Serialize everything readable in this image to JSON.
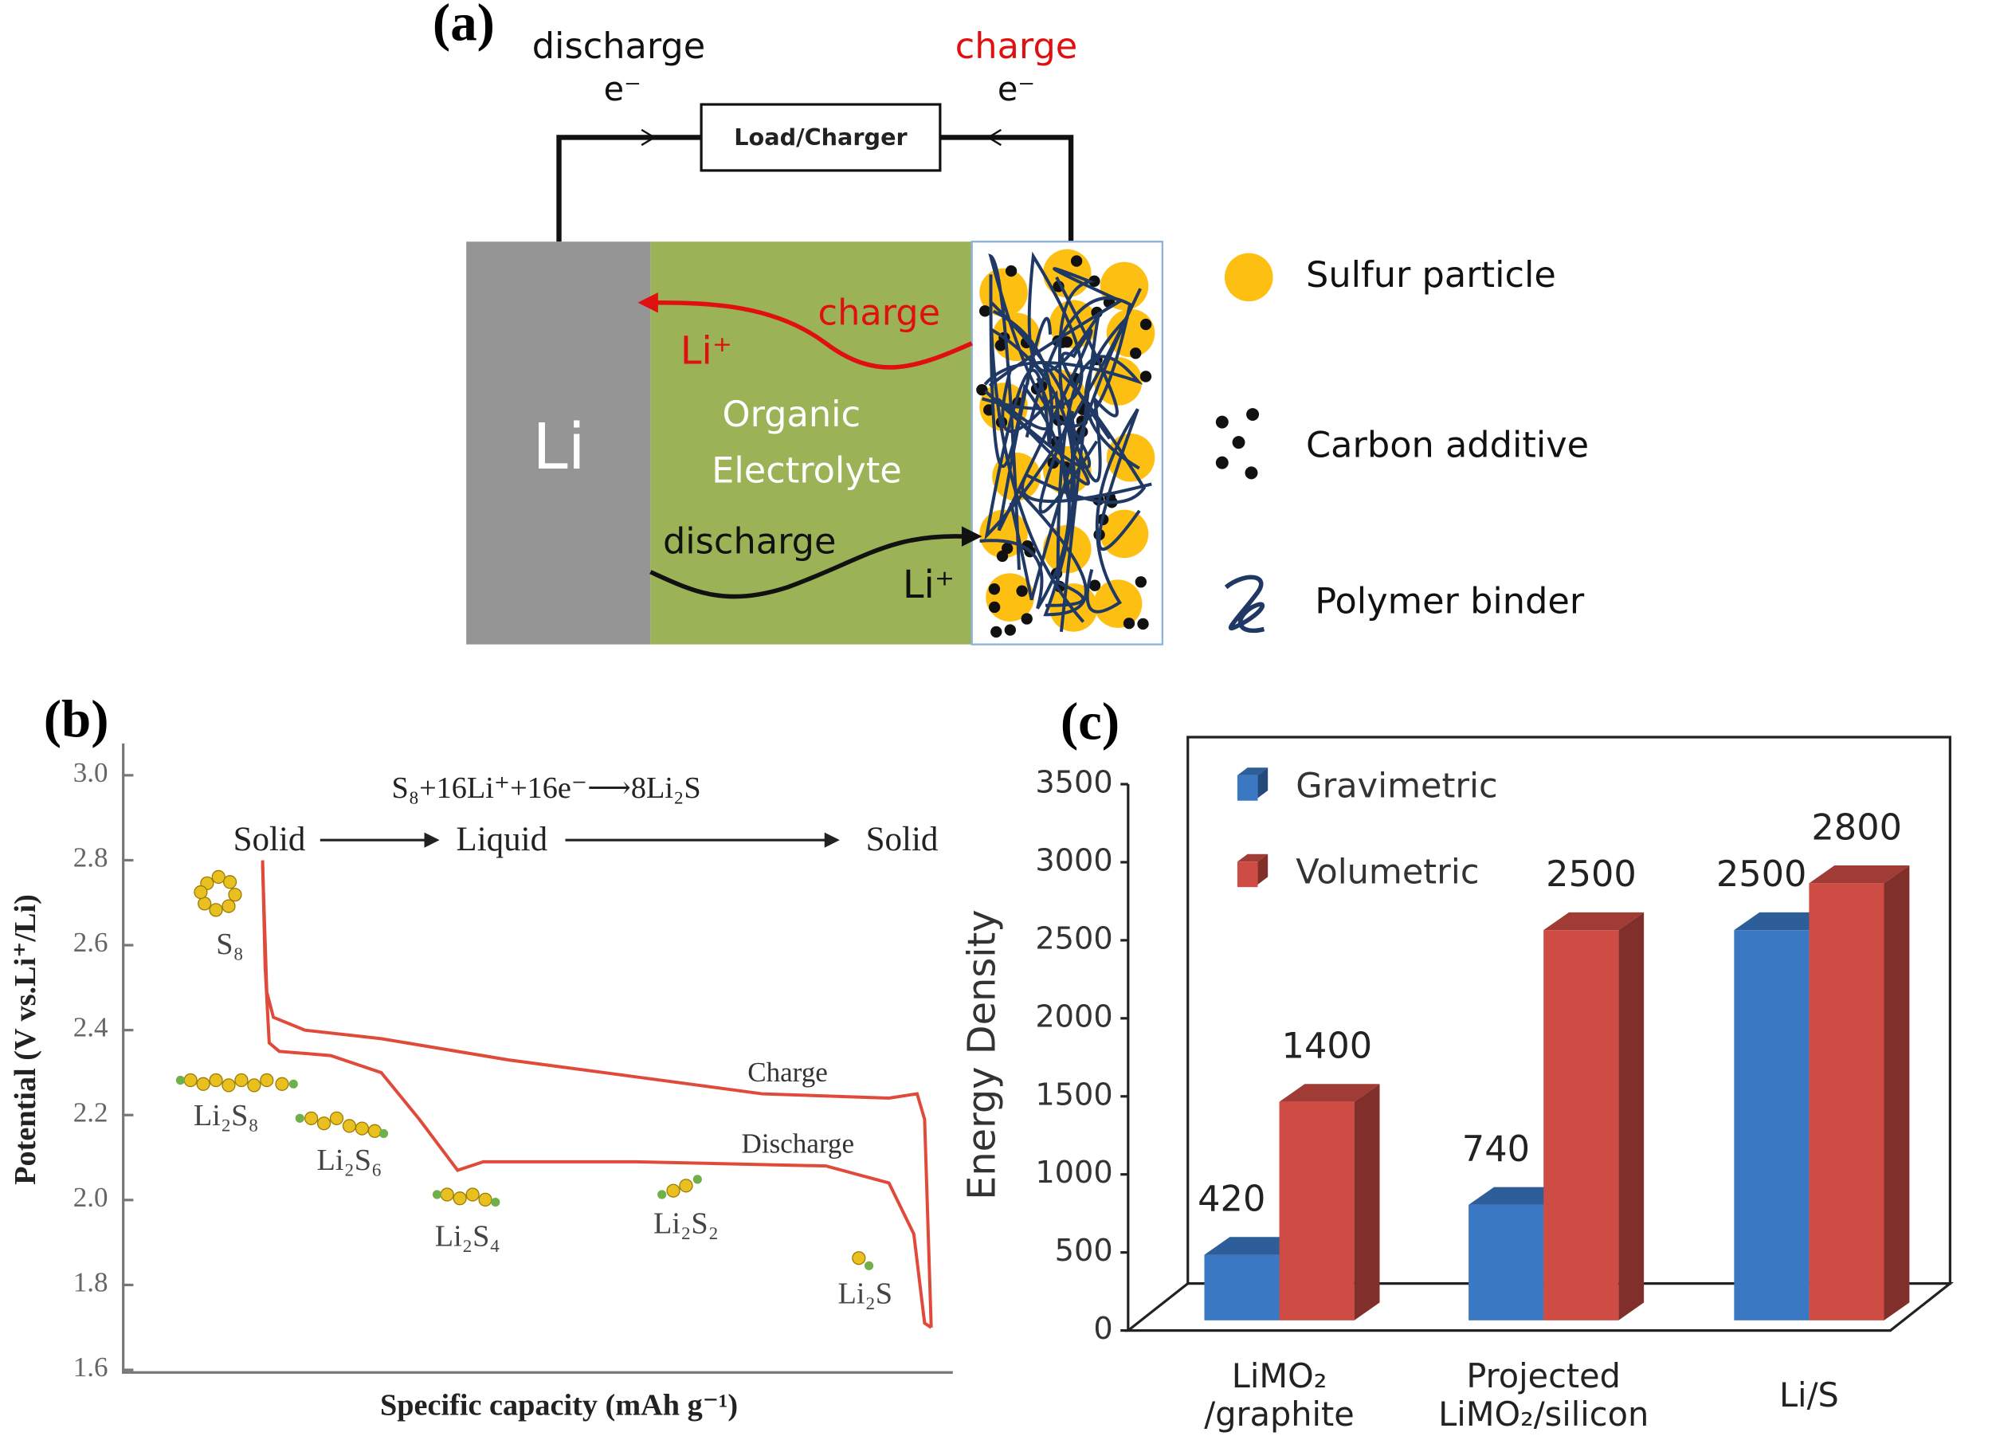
{
  "panel_a": {
    "label": "(a)",
    "wire": {
      "discharge": "discharge",
      "charge": "charge",
      "electron_left": "e⁻",
      "electron_right": "e⁻",
      "load": "Load/Charger"
    },
    "cell": {
      "anode": "Li",
      "electrolyte": [
        "Organic",
        "Electrolyte"
      ],
      "charge_path": "charge",
      "charge_ion": "Li⁺",
      "discharge_path": "discharge",
      "discharge_ion": "Li⁺"
    },
    "legend": [
      "Sulfur particle",
      "Carbon additive",
      "Polymer binder"
    ]
  },
  "chart_data": [
    {
      "type": "line",
      "panel": "(b)",
      "equation": "S₈+16Li⁺+16e⁻⟶8Li₂S",
      "phases": [
        "Solid",
        "Liquid",
        "Solid"
      ],
      "species": [
        "S₈",
        "Li₂S₈",
        "Li₂S₆",
        "Li₂S₄",
        "Li₂S₂",
        "Li₂S"
      ],
      "xlabel": "Specific capacity (mAh g⁻¹)",
      "ylabel": "Potential (V vs.Li⁺/Li)",
      "xlim": [
        0,
        1
      ],
      "ylim": [
        1.6,
        3.0
      ],
      "yticks": [
        {
          "value": 1.6,
          "label": "1.6"
        },
        1.8,
        {
          "value": 2.0,
          "label": "2.0"
        },
        2.2,
        2.4,
        2.6,
        2.8,
        {
          "value": 3.0,
          "label": "3.0"
        }
      ],
      "series": [
        {
          "name": "Charge",
          "color": "#e04a3a",
          "x": [
            0.168,
            0.173,
            0.181,
            0.219,
            0.311,
            0.464,
            0.617,
            0.77,
            0.923,
            0.957,
            0.966,
            0.974
          ],
          "values": [
            2.79,
            2.49,
            2.43,
            2.4,
            2.38,
            2.33,
            2.29,
            2.25,
            2.24,
            2.25,
            2.19,
            1.7
          ]
        },
        {
          "name": "Discharge",
          "color": "#e04a3a",
          "x": [
            0.168,
            0.171,
            0.176,
            0.188,
            0.25,
            0.311,
            0.357,
            0.403,
            0.434,
            0.617,
            0.847,
            0.923,
            0.953,
            0.966,
            0.974
          ],
          "values": [
            2.8,
            2.55,
            2.37,
            2.35,
            2.34,
            2.3,
            2.19,
            2.07,
            2.09,
            2.09,
            2.08,
            2.04,
            1.92,
            1.71,
            1.7
          ]
        }
      ]
    },
    {
      "type": "bar",
      "panel": "(c)",
      "ylabel": "Energy Density",
      "categories": [
        [
          "LiMO₂",
          "/graphite"
        ],
        [
          "Projected",
          "LiMO₂/silicon"
        ],
        [
          "Li/S"
        ]
      ],
      "ylim": [
        0,
        3500
      ],
      "yticks": [
        0,
        500,
        1000,
        1500,
        2000,
        2500,
        3000,
        3500
      ],
      "series": [
        {
          "name": "Gravimetric",
          "color": "#3a78c4",
          "values": [
            420,
            740,
            2500
          ]
        },
        {
          "name": "Volumetric",
          "color": "#cf4c44",
          "values": [
            1400,
            2500,
            2800
          ]
        }
      ]
    }
  ]
}
